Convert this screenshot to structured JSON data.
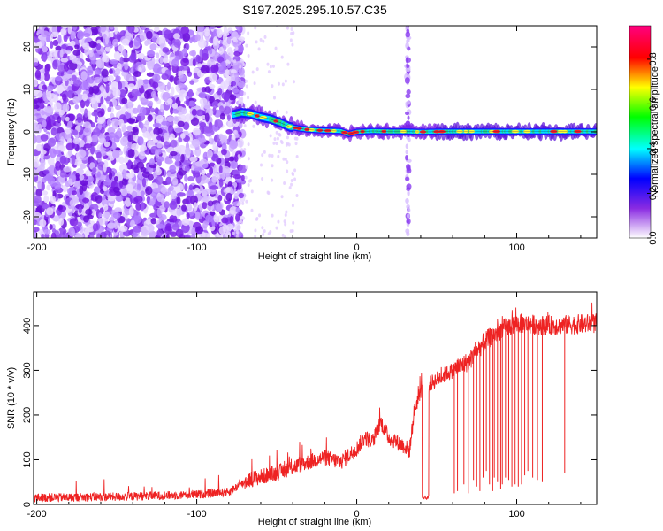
{
  "title": "S197.2025.295.10.57.C35",
  "chart_data": [
    {
      "type": "heatmap",
      "title": "",
      "xlabel": "Height of straight line (km)",
      "ylabel": "Frequency (Hz)",
      "xlim": [
        -202,
        150
      ],
      "ylim": [
        -25,
        25
      ],
      "xticks": [
        -200,
        -100,
        0,
        100
      ],
      "xtick_labels": [
        "-200",
        "-100",
        "0",
        "100"
      ],
      "yticks": [
        -20,
        -10,
        0,
        10,
        20
      ],
      "ytick_labels": [
        "-20",
        "-10",
        "0",
        "10",
        "20"
      ],
      "noise_region_km": [
        -202,
        -77
      ],
      "ridge": {
        "x": [
          -77,
          -72,
          -66,
          -60,
          -54,
          -48,
          -42,
          -36,
          -30,
          -20,
          -10,
          -5,
          0,
          10,
          20,
          30,
          40,
          60,
          80,
          100,
          120,
          150
        ],
        "y": [
          4.0,
          4.5,
          4.2,
          3.5,
          3.0,
          2.2,
          1.2,
          0.8,
          0.5,
          0.3,
          0.2,
          -0.5,
          0.0,
          0.2,
          0.1,
          0.1,
          0.0,
          0.1,
          0.1,
          0.1,
          0.1,
          0.1
        ]
      },
      "vertical_streak_km": 32,
      "colorbar": {
        "label": "Normalized spectral amplitude",
        "range": [
          0,
          0.95
        ],
        "ticks": [
          0.0,
          0.2,
          0.4,
          0.6,
          0.8
        ],
        "tick_labels": [
          "0.0",
          "0.2",
          "0.4",
          "0.6",
          "0.8"
        ],
        "colors": [
          "#ffffff",
          "#8a2be2",
          "#0000ff",
          "#00ffff",
          "#00ff00",
          "#ffff00",
          "#ff0000",
          "#ff0080"
        ]
      }
    },
    {
      "type": "line",
      "title": "",
      "xlabel": "Height of straight line (km)",
      "ylabel": "SNR (10 * v/v)",
      "xlim": [
        -202,
        150
      ],
      "ylim": [
        0,
        475
      ],
      "xticks": [
        -200,
        -100,
        0,
        100
      ],
      "xtick_labels": [
        "-200",
        "-100",
        "0",
        "100"
      ],
      "yticks": [
        0,
        100,
        200,
        300,
        400
      ],
      "ytick_labels": [
        "0",
        "100",
        "200",
        "300",
        "400"
      ],
      "color": "#ee2222",
      "trend": {
        "x": [
          -202,
          -150,
          -100,
          -80,
          -68,
          -50,
          -35,
          -20,
          -10,
          0,
          5,
          10,
          15,
          20,
          25,
          30,
          33,
          36,
          40,
          50,
          60,
          70,
          80,
          90,
          100,
          120,
          150
        ],
        "y": [
          15,
          17,
          22,
          28,
          55,
          70,
          90,
          105,
          95,
          125,
          150,
          140,
          185,
          150,
          140,
          130,
          120,
          210,
          255,
          280,
          300,
          320,
          365,
          390,
          405,
          400,
          405
        ]
      },
      "noise_amplitude": 14,
      "gap_km": [
        41,
        45
      ],
      "gap_value": 15,
      "dropout_positions_km": [
        61,
        63,
        67,
        70,
        73,
        75,
        77,
        79,
        81,
        83,
        85,
        86,
        88,
        90,
        91,
        93,
        95,
        97,
        99,
        101,
        103,
        105,
        107,
        110,
        113,
        116,
        130
      ],
      "dropout_values": [
        25,
        30,
        45,
        25,
        55,
        40,
        30,
        60,
        75,
        45,
        30,
        60,
        50,
        35,
        45,
        60,
        55,
        40,
        45,
        40,
        45,
        65,
        75,
        60,
        55,
        50,
        70
      ]
    }
  ]
}
